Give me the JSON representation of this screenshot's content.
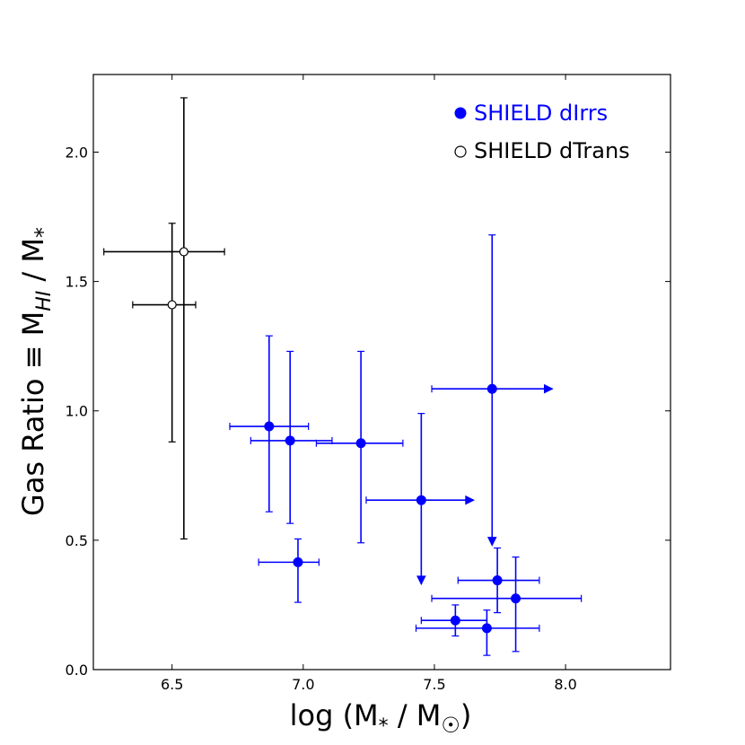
{
  "chart_data": {
    "type": "scatter",
    "xlabel": {
      "base": "log (M",
      "sub": "*",
      "mid": " / M",
      "sub2": "☉",
      "end": ")"
    },
    "ylabel": {
      "base": "Gas Ratio ≡ M",
      "sub": "HI",
      "mid": " / M",
      "sub2": "*"
    },
    "xlim": [
      6.2,
      8.4
    ],
    "ylim": [
      0.0,
      2.3
    ],
    "xticks": [
      6.5,
      7.0,
      7.5,
      8.0
    ],
    "xtick_labels": [
      "6.5",
      "7.0",
      "7.5",
      "8.0"
    ],
    "yticks": [
      0.0,
      0.5,
      1.0,
      1.5,
      2.0
    ],
    "ytick_labels": [
      "0.0",
      "0.5",
      "1.0",
      "1.5",
      "2.0"
    ],
    "grid": false,
    "legend_position": "top-right",
    "series": [
      {
        "name": "SHIELD dIrrs",
        "color": "#0000ff",
        "marker": "filled-circle",
        "points": [
          {
            "x": 6.87,
            "y": 0.94,
            "xerr": [
              6.72,
              7.02
            ],
            "yerr": [
              0.61,
              1.29
            ],
            "xarrow": false,
            "yarrow": false
          },
          {
            "x": 6.95,
            "y": 0.885,
            "xerr": [
              6.8,
              7.11
            ],
            "yerr": [
              0.565,
              1.23
            ],
            "xarrow": false,
            "yarrow": false
          },
          {
            "x": 7.22,
            "y": 0.875,
            "xerr": [
              7.05,
              7.38
            ],
            "yerr": [
              0.49,
              1.23
            ],
            "xarrow": false,
            "yarrow": false
          },
          {
            "x": 7.45,
            "y": 0.655,
            "xerr": [
              7.24,
              7.65
            ],
            "yerr": [
              0.33,
              0.99
            ],
            "xarrow": true,
            "yarrow": true
          },
          {
            "x": 7.72,
            "y": 1.085,
            "xerr": [
              7.49,
              7.95
            ],
            "yerr": [
              0.48,
              1.68
            ],
            "xarrow": true,
            "yarrow": true
          },
          {
            "x": 6.98,
            "y": 0.415,
            "xerr": [
              6.83,
              7.06
            ],
            "yerr": [
              0.26,
              0.505
            ],
            "xarrow": false,
            "yarrow": false
          },
          {
            "x": 7.74,
            "y": 0.345,
            "xerr": [
              7.59,
              7.9
            ],
            "yerr": [
              0.22,
              0.47
            ],
            "xarrow": false,
            "yarrow": false
          },
          {
            "x": 7.81,
            "y": 0.275,
            "xerr": [
              7.49,
              8.06
            ],
            "yerr": [
              0.07,
              0.435
            ],
            "xarrow": false,
            "yarrow": false
          },
          {
            "x": 7.58,
            "y": 0.19,
            "xerr": [
              7.45,
              7.7
            ],
            "yerr": [
              0.13,
              0.25
            ],
            "xarrow": false,
            "yarrow": false
          },
          {
            "x": 7.7,
            "y": 0.16,
            "xerr": [
              7.43,
              7.9
            ],
            "yerr": [
              0.055,
              0.23
            ],
            "xarrow": false,
            "yarrow": false
          }
        ]
      },
      {
        "name": "SHIELD dTrans",
        "color": "#000000",
        "marker": "open-circle",
        "points": [
          {
            "x": 6.545,
            "y": 1.615,
            "xerr": [
              6.24,
              6.7
            ],
            "yerr": [
              0.505,
              2.21
            ],
            "xarrow": false,
            "yarrow": false
          },
          {
            "x": 6.5,
            "y": 1.41,
            "xerr": [
              6.35,
              6.59
            ],
            "yerr": [
              0.88,
              1.725
            ],
            "xarrow": false,
            "yarrow": false
          }
        ]
      }
    ]
  }
}
